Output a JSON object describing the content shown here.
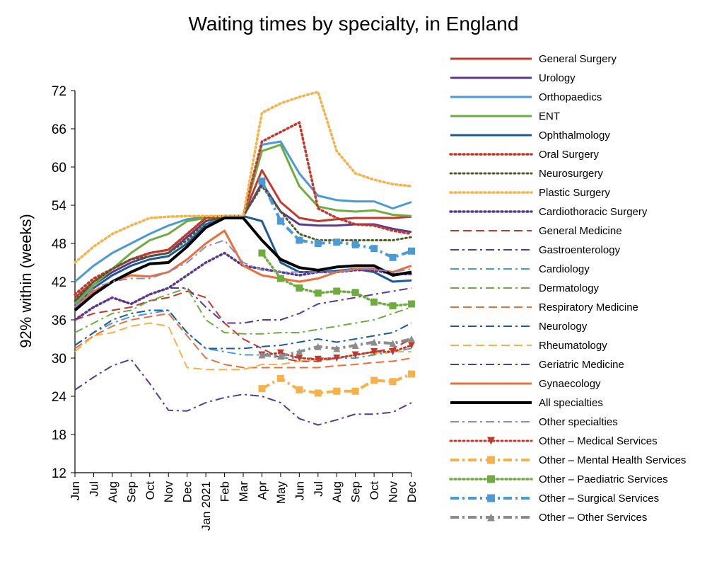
{
  "chart_data": {
    "type": "line",
    "title": "Waiting times by specialty, in England",
    "ylabel": "92% within (weeks)",
    "xlabel": "",
    "ylim": [
      12,
      72
    ],
    "yticks": [
      12,
      18,
      24,
      30,
      36,
      42,
      48,
      54,
      60,
      66,
      72
    ],
    "categories": [
      "Jun",
      "Jul",
      "Aug",
      "Sep",
      "Oct",
      "Nov",
      "Dec",
      "Jan 2021",
      "Feb",
      "Mar",
      "Apr",
      "May",
      "Jun",
      "Jul",
      "Aug",
      "Sep",
      "Oct",
      "Nov",
      "Dec"
    ],
    "grid": false,
    "legend_position": "right",
    "series": [
      {
        "name": "General Surgery",
        "color": "#c0392b",
        "style": "solid",
        "width": 3,
        "marker": "none",
        "values": [
          39.5,
          42,
          44,
          45.5,
          46.5,
          47,
          49.5,
          52,
          52.3,
          52.3,
          59.5,
          54.5,
          52,
          51.5,
          51.8,
          52,
          52,
          52,
          52.2
        ]
      },
      {
        "name": "Urology",
        "color": "#5b3a8c",
        "style": "solid",
        "width": 3,
        "marker": "none",
        "values": [
          39,
          41.5,
          43.5,
          45,
          46,
          46.5,
          49,
          51.5,
          52.2,
          52.2,
          57.5,
          53,
          51,
          50.8,
          50.8,
          51,
          51,
          50.3,
          49.8
        ]
      },
      {
        "name": "Orthopaedics",
        "color": "#4a9ad4",
        "style": "solid",
        "width": 3,
        "marker": "none",
        "values": [
          42,
          44.5,
          46.5,
          48,
          49.5,
          50.8,
          51.8,
          52.2,
          52.3,
          52.3,
          63.5,
          64,
          59,
          55.5,
          54.8,
          54.6,
          54.6,
          53.5,
          54.5
        ]
      },
      {
        "name": "ENT",
        "color": "#6fac3f",
        "style": "solid",
        "width": 3,
        "marker": "none",
        "values": [
          38.5,
          41.5,
          44,
          46.5,
          48.5,
          49.5,
          51.5,
          52,
          52.2,
          52.2,
          62.5,
          63.5,
          57,
          53.8,
          53.2,
          53,
          53.2,
          52.5,
          52.3
        ]
      },
      {
        "name": "Ophthalmology",
        "color": "#1f5a96",
        "style": "solid",
        "width": 3,
        "marker": "none",
        "values": [
          38,
          41,
          43,
          44.5,
          45.5,
          46,
          48,
          51,
          52,
          52.3,
          51.5,
          45,
          43.5,
          43.5,
          43.7,
          44,
          43.5,
          42,
          42.2
        ]
      },
      {
        "name": "Oral Surgery",
        "color": "#c0392b",
        "style": "dot",
        "width": 3.5,
        "marker": "none",
        "values": [
          40,
          42.5,
          44,
          45.5,
          46.5,
          47,
          49.5,
          52,
          52.3,
          52.3,
          64,
          65.5,
          67,
          53.5,
          52,
          51,
          50.8,
          50,
          49.5
        ]
      },
      {
        "name": "Neurosurgery",
        "color": "#4f5a2c",
        "style": "dot",
        "width": 3,
        "marker": "none",
        "values": [
          39,
          42,
          44,
          45.5,
          46,
          46.5,
          48.5,
          51.5,
          52.2,
          52.3,
          57,
          53,
          49.5,
          48.5,
          48.5,
          48.5,
          48.5,
          48.5,
          49
        ]
      },
      {
        "name": "Plastic Surgery",
        "color": "#f6b14a",
        "style": "dot",
        "width": 3.5,
        "marker": "none",
        "values": [
          45,
          47.5,
          49.5,
          50.8,
          52,
          52.2,
          52.3,
          52.3,
          52.3,
          52.3,
          68.5,
          70,
          71,
          71.8,
          62.5,
          59,
          58,
          57.3,
          57
        ]
      },
      {
        "name": "Cardiothoracic Surgery",
        "color": "#5b3a8c",
        "style": "dot",
        "width": 3.5,
        "marker": "none",
        "values": [
          36,
          38,
          39.5,
          38.5,
          40,
          41,
          43,
          45,
          46.5,
          44.5,
          44,
          43.5,
          43,
          43.5,
          43.5,
          43.8,
          43.8,
          43.2,
          43.2
        ]
      },
      {
        "name": "General Medicine",
        "color": "#c0392b",
        "style": "dash",
        "width": 2,
        "marker": "none",
        "values": [
          36,
          37,
          37.5,
          38,
          39,
          39.5,
          40.5,
          39.5,
          35.5,
          33,
          31.5,
          30,
          29.5,
          29.5,
          30,
          30.5,
          31,
          31.5,
          33
        ]
      },
      {
        "name": "Gastroenterology",
        "color": "#5b3a8c",
        "style": "dashdot",
        "width": 2,
        "marker": "none",
        "values": [
          36,
          38,
          39.5,
          38.5,
          40,
          41,
          41,
          38,
          35.5,
          35.5,
          36,
          36,
          37,
          38.5,
          39,
          39.5,
          40,
          40.5,
          41
        ]
      },
      {
        "name": "Cardiology",
        "color": "#4a9ad4",
        "style": "dashdot",
        "width": 2,
        "marker": "none",
        "values": [
          32,
          34,
          35.5,
          36.5,
          37,
          37.5,
          34,
          31.5,
          31,
          30.5,
          30.5,
          30,
          30,
          30,
          30,
          30,
          30.5,
          31,
          31.5
        ]
      },
      {
        "name": "Dermatology",
        "color": "#6fac3f",
        "style": "dashdot",
        "width": 2,
        "marker": "none",
        "values": [
          34,
          35.5,
          37,
          37.5,
          39,
          40,
          41,
          36,
          34,
          33.8,
          33.8,
          34,
          34,
          34.5,
          35,
          35.5,
          36,
          37,
          38
        ]
      },
      {
        "name": "Respiratory Medicine",
        "color": "#e8703a",
        "style": "dash",
        "width": 2,
        "marker": "none",
        "values": [
          31.5,
          33.5,
          35,
          36,
          36.5,
          37,
          33.5,
          30,
          29,
          28.5,
          28.5,
          28.5,
          28.5,
          28.5,
          28.8,
          29,
          29.3,
          29.5,
          30
        ]
      },
      {
        "name": "Neurology",
        "color": "#1f5a96",
        "style": "dashdot",
        "width": 2,
        "marker": "none",
        "values": [
          32,
          34,
          36,
          37,
          37.5,
          37.5,
          34,
          31.5,
          31.5,
          31.5,
          31.8,
          32,
          32.5,
          33,
          32.5,
          33,
          33.5,
          34,
          35.5
        ]
      },
      {
        "name": "Rheumatology",
        "color": "#f6b14a",
        "style": "dash",
        "width": 2,
        "marker": "none",
        "values": [
          31,
          33.5,
          34,
          35,
          35.5,
          35,
          28.5,
          28.2,
          28.2,
          28.2,
          29,
          29,
          29.5,
          29.8,
          30,
          30.5,
          30.7,
          31,
          31
        ]
      },
      {
        "name": "Geriatric Medicine",
        "color": "#5b3a8c",
        "style": "dashdot",
        "width": 2,
        "marker": "none",
        "values": [
          25,
          27,
          28.8,
          29.8,
          26,
          21.8,
          21.7,
          23,
          23.8,
          24.3,
          24,
          23,
          20.5,
          19.5,
          20.3,
          21.2,
          21.2,
          21.5,
          23
        ]
      },
      {
        "name": "Gynaecology",
        "color": "#e8703a",
        "style": "solid",
        "width": 3,
        "marker": "none",
        "values": [
          38,
          40.5,
          42,
          43,
          42.8,
          43.5,
          45.5,
          48,
          50,
          44.5,
          43,
          42.5,
          42,
          42.5,
          43.5,
          44,
          44,
          43.5,
          44.5
        ]
      },
      {
        "name": "All specialties",
        "color": "#000000",
        "style": "solid",
        "width": 4,
        "marker": "none",
        "values": [
          37.5,
          40,
          42,
          43.5,
          44.8,
          45,
          47.5,
          50.5,
          52,
          52,
          48.5,
          45.5,
          44.2,
          43.8,
          44.3,
          44.5,
          44.5,
          43,
          43.5
        ]
      },
      {
        "name": "Other specialties",
        "color": "#8a8ac8",
        "style": "dashdot",
        "width": 2,
        "marker": "none",
        "values": [
          38,
          41,
          42,
          42.5,
          42.5,
          43.5,
          45,
          47.5,
          48.5,
          45,
          43.8,
          43.5,
          43.5,
          43.5,
          43.5,
          44,
          44,
          43.5,
          44
        ]
      },
      {
        "name": "Other – Medical Services",
        "color": "#c0392b",
        "style": "dot",
        "width": 3,
        "marker": "triangle-down",
        "values": [
          null,
          null,
          null,
          null,
          null,
          null,
          null,
          null,
          null,
          null,
          30.5,
          30.8,
          30,
          29.8,
          30,
          30.5,
          31,
          31,
          32
        ]
      },
      {
        "name": "Other – Mental Health Services",
        "color": "#f6b14a",
        "style": "dashdot",
        "width": 4,
        "marker": "square",
        "values": [
          null,
          null,
          null,
          null,
          null,
          null,
          null,
          null,
          null,
          null,
          25.2,
          26.8,
          25,
          24.5,
          24.8,
          24.8,
          26.5,
          26.3,
          27.5
        ]
      },
      {
        "name": "Other – Paediatric Services",
        "color": "#6fac3f",
        "style": "dot",
        "width": 3.5,
        "marker": "square",
        "values": [
          null,
          null,
          null,
          null,
          null,
          null,
          null,
          null,
          null,
          null,
          46.5,
          42.5,
          41,
          40.2,
          40.5,
          40.3,
          38.8,
          38.2,
          38.5
        ]
      },
      {
        "name": "Other – Surgical Services",
        "color": "#4a9ad4",
        "style": "dashdot",
        "width": 4,
        "marker": "square",
        "values": [
          null,
          null,
          null,
          null,
          null,
          null,
          null,
          null,
          null,
          null,
          57.8,
          51.5,
          48.5,
          48,
          48.2,
          47.8,
          47.2,
          45.8,
          46.8
        ]
      },
      {
        "name": "Other – Other Services",
        "color": "#8c8c8c",
        "style": "dashdot",
        "width": 4,
        "marker": "triangle-up",
        "values": [
          null,
          null,
          null,
          null,
          null,
          null,
          null,
          null,
          null,
          null,
          30.5,
          30.3,
          31,
          31.8,
          31.5,
          32,
          32.5,
          32.3,
          33
        ]
      }
    ]
  }
}
